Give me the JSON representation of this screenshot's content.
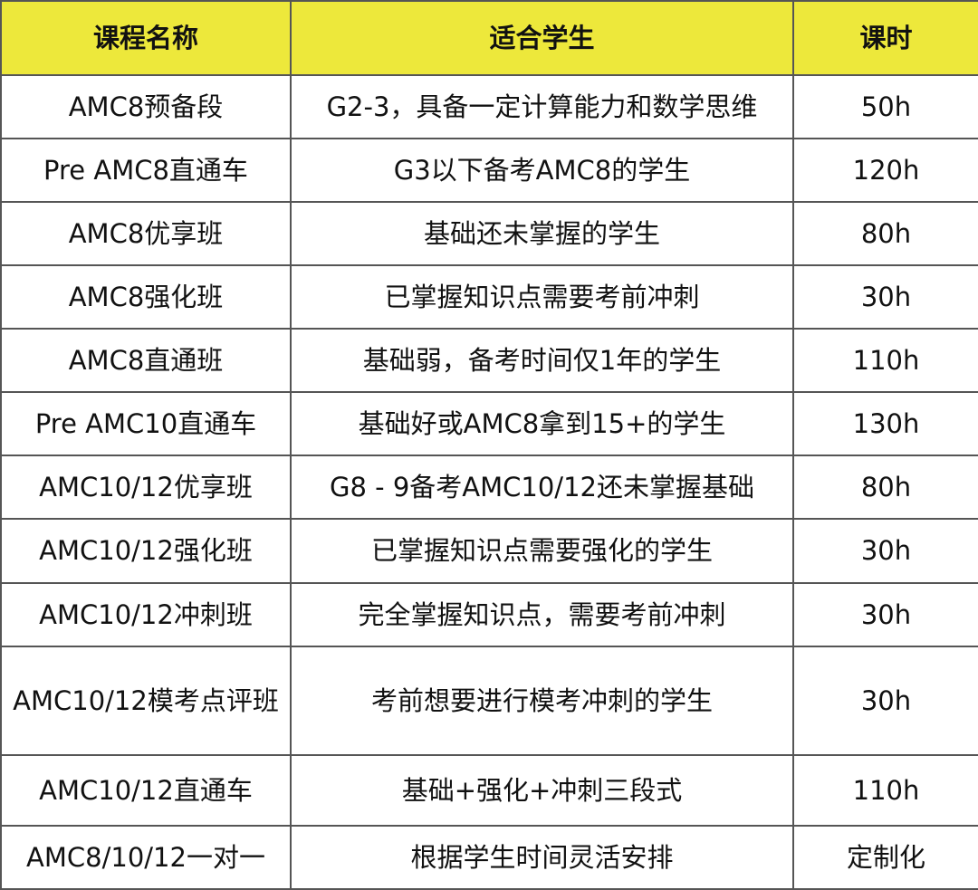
{
  "header_color": "#ede83b",
  "columns": [
    "课程名称",
    "适合学生",
    "课时"
  ],
  "rows": [
    {
      "name": "AMC8预备段",
      "students": "G2-3，具备一定计算能力和数学思维",
      "hours": "50h"
    },
    {
      "name": "Pre AMC8直通车",
      "students": "G3以下备考AMC8的学生",
      "hours": "120h"
    },
    {
      "name": "AMC8优享班",
      "students": "基础还未掌握的学生",
      "hours": "80h"
    },
    {
      "name": "AMC8强化班",
      "students": "已掌握知识点需要考前冲刺",
      "hours": "30h"
    },
    {
      "name": "AMC8直通班",
      "students": "基础弱，备考时间仅1年的学生",
      "hours": "110h"
    },
    {
      "name": "Pre AMC10直通车",
      "students": "基础好或AMC8拿到15+的学生",
      "hours": "130h"
    },
    {
      "name": "AMC10/12优享班",
      "students": "G8 - 9备考AMC10/12还未掌握基础",
      "hours": "80h"
    },
    {
      "name": "AMC10/12强化班",
      "students": "已掌握知识点需要强化的学生",
      "hours": "30h"
    },
    {
      "name": "AMC10/12冲刺班",
      "students": "完全掌握知识点，需要考前冲刺",
      "hours": "30h"
    },
    {
      "name": "AMC10/12模考点评班",
      "students": "考前想要进行模考冲刺的学生",
      "hours": "30h"
    },
    {
      "name": "AMC10/12直通车",
      "students": "基础+强化+冲刺三段式",
      "hours": "110h"
    },
    {
      "name": "AMC8/10/12一对一",
      "students": "根据学生时间灵活安排",
      "hours": "定制化"
    }
  ]
}
